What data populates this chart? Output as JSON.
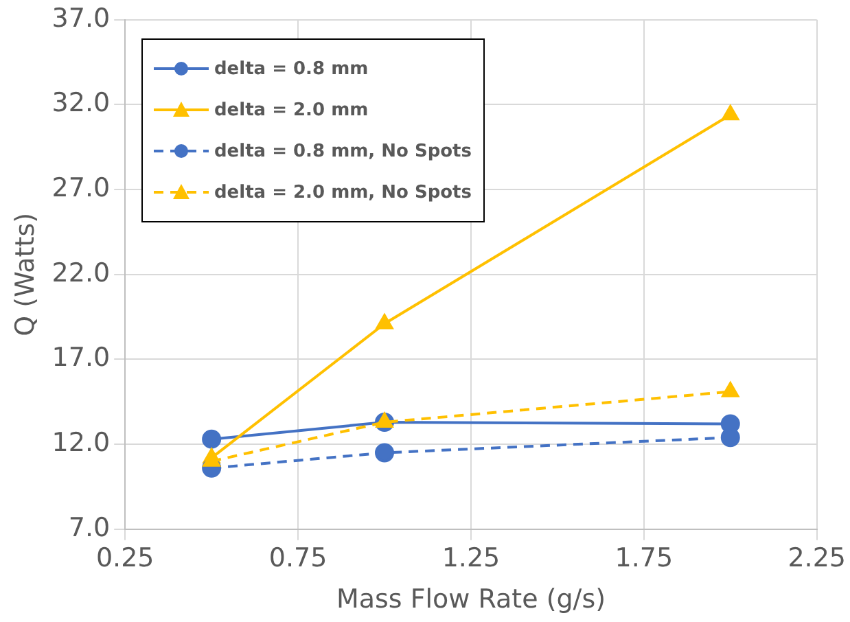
{
  "chart_data": {
    "type": "line",
    "xlabel": "Mass Flow Rate (g/s)",
    "ylabel": "Q (Watts)",
    "xlim": [
      0.25,
      2.25
    ],
    "xticks": [
      0.25,
      0.75,
      1.25,
      1.75,
      2.25
    ],
    "ylim": [
      7,
      37
    ],
    "yticks": [
      {
        "value": 7,
        "label": "7.0"
      },
      {
        "value": 12,
        "label": "12.0"
      },
      {
        "value": 17,
        "label": "17.0"
      },
      {
        "value": 22,
        "label": "22.0"
      },
      {
        "value": 27,
        "label": "27.0"
      },
      {
        "value": 32,
        "label": "32.0"
      },
      {
        "value": 37,
        "label": "37.0"
      }
    ],
    "grid": true,
    "legend": "top left",
    "series": [
      {
        "name": "delta = 0.8 mm",
        "color": "#4472c4",
        "x": [
          0.5,
          1.0,
          2.0
        ],
        "values": [
          12.3,
          13.3,
          13.2
        ],
        "marker": "circle",
        "line_style": "solid"
      },
      {
        "name": "delta = 2.0 mm",
        "color": "#ffc000",
        "x": [
          0.5,
          1.0,
          2.0
        ],
        "values": [
          11.2,
          19.1,
          31.4
        ],
        "marker": "triangle",
        "line_style": "solid"
      },
      {
        "name": "delta = 0.8 mm, No Spots",
        "color": "#4472c4",
        "x": [
          0.5,
          1.0,
          2.0
        ],
        "values": [
          10.6,
          11.5,
          12.4
        ],
        "marker": "circle",
        "line_style": "dashed"
      },
      {
        "name": "delta = 2.0 mm, No Spots",
        "color": "#ffc000",
        "x": [
          0.5,
          1.0,
          2.0
        ],
        "values": [
          11.0,
          13.3,
          15.1
        ],
        "marker": "triangle",
        "line_style": "dashed"
      }
    ]
  }
}
